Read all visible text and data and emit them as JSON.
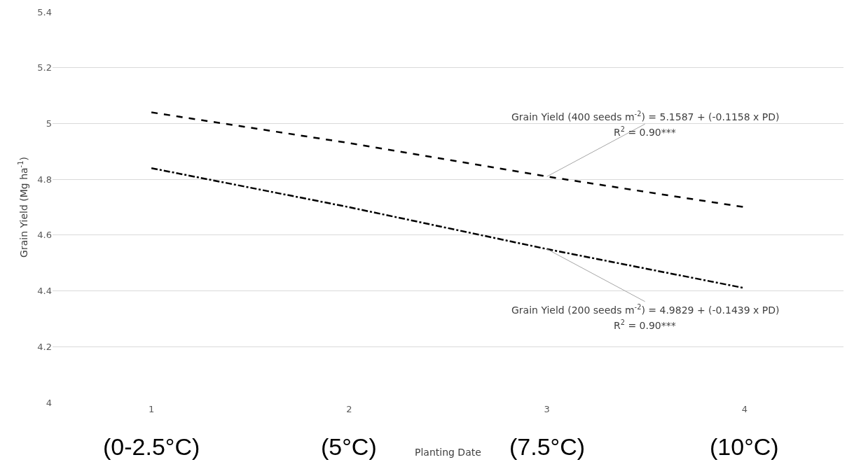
{
  "chart_data": {
    "type": "line",
    "xlabel": "Planting Date",
    "ylabel": "Grain Yield (Mg ha$^{-1}$)",
    "categories": [
      "1",
      "2",
      "3",
      "4"
    ],
    "series": [
      {
        "color": "#000000",
        "line_style": "dashed",
        "values": [
          5.04,
          4.93,
          4.81,
          4.7
        ]
      },
      {
        "color": "#000000",
        "line_style": "dashdot",
        "values": [
          4.84,
          4.7,
          4.55,
          4.41
        ]
      }
    ],
    "ylim": [
      4,
      5.4
    ],
    "yticks": [
      4,
      4.2,
      4.4,
      4.6,
      4.8,
      5,
      5.2,
      5.4
    ],
    "grid": "y",
    "marker": "none",
    "annotations": [
      {
        "text": "Grain Yield (400 seeds m$^{-2}$) = 5.1587 + (-0.1158 x PD)",
        "x": "3",
        "y": 4.81
      },
      "R$^{2}$ = 0.90***",
      {
        "text": "Grain Yield (200 seeds m$^{-2}$) = 4.9829 + (-0.1439 x PD)",
        "x": "3",
        "y": 4.55
      },
      "R$^{2}$ = 0.90***",
      "(0-2.5°C)",
      "(5°C)",
      "(7.5°C)",
      "(10°C)"
    ]
  }
}
